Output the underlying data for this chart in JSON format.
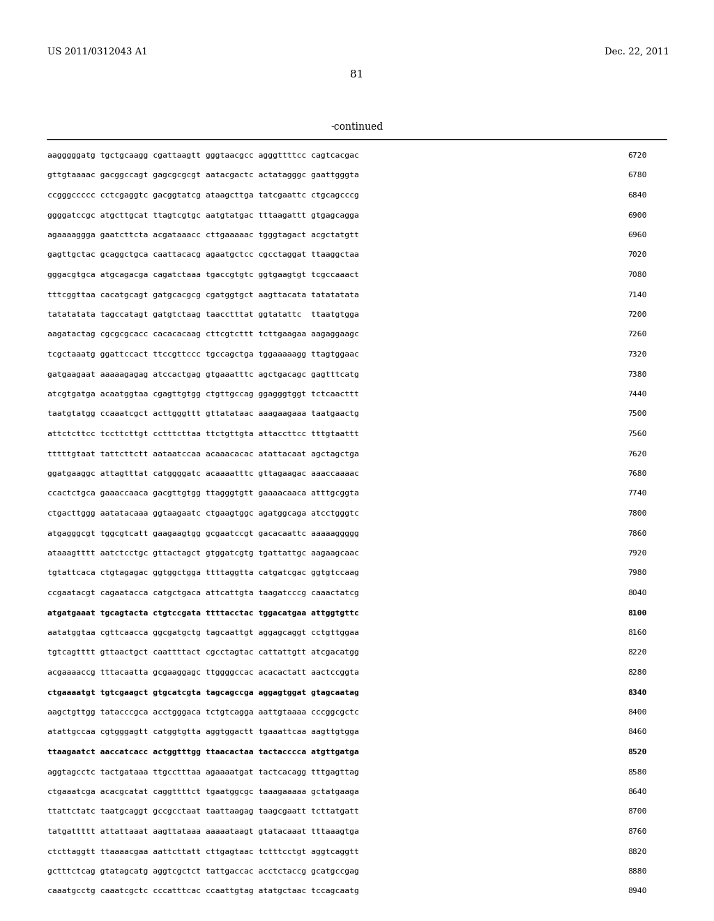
{
  "header_left": "US 2011/0312043 A1",
  "header_right": "Dec. 22, 2011",
  "page_number": "81",
  "continued_label": "-continued",
  "background_color": "#ffffff",
  "sequence_lines": [
    [
      "aagggggatg tgctgcaagg cgattaagtt gggtaacgcc agggttttcc cagtcacgac",
      "6720"
    ],
    [
      "gttgtaaaac gacggccagt gagcgcgcgt aatacgactc actatagggc gaattgggta",
      "6780"
    ],
    [
      "ccgggccccc cctcgaggtc gacggtatcg ataagcttga tatcgaattc ctgcagcccg",
      "6840"
    ],
    [
      "ggggatccgc atgcttgcat ttagtcgtgc aatgtatgac tttaagattt gtgagcagga",
      "6900"
    ],
    [
      "agaaaaggga gaatcttcta acgataaacc cttgaaaaac tgggtagact acgctatgtt",
      "6960"
    ],
    [
      "gagttgctac gcaggctgca caattacacg agaatgctcc cgcctaggat ttaaggctaa",
      "7020"
    ],
    [
      "gggacgtgca atgcagacga cagatctaaa tgaccgtgtc ggtgaagtgt tcgccaaact",
      "7080"
    ],
    [
      "tttcggttaa cacatgcagt gatgcacgcg cgatggtgct aagttacata tatatatata",
      "7140"
    ],
    [
      "tatatatata tagccatagt gatgtctaag taacctttat ggtatattc  ttaatgtgga",
      "7200"
    ],
    [
      "aagatactag cgcgcgcacc cacacacaag cttcgtcttt tcttgaagaa aagaggaagc",
      "7260"
    ],
    [
      "tcgctaaatg ggattccact ttccgttccc tgccagctga tggaaaaagg ttagtggaac",
      "7320"
    ],
    [
      "gatgaagaat aaaaagagag atccactgag gtgaaatttc agctgacagc gagtttcatg",
      "7380"
    ],
    [
      "atcgtgatga acaatggtaa cgagttgtgg ctgttgccag ggagggtggt tctcaacttt",
      "7440"
    ],
    [
      "taatgtatgg ccaaatcgct acttgggttt gttatataac aaagaagaaa taatgaactg",
      "7500"
    ],
    [
      "attctcttcc tccttcttgt cctttcttaa ttctgttgta attaccttcc tttgtaattt",
      "7560"
    ],
    [
      "tttttgtaat tattcttctt aataatccaa acaaacacac atattacaat agctagctga",
      "7620"
    ],
    [
      "ggatgaaggc attagtttat catggggatc acaaaatttc gttagaagac aaaccaaaac",
      "7680"
    ],
    [
      "ccactctgca gaaaccaaca gacgttgtgg ttagggtgtt gaaaacaaca atttgcggta",
      "7740"
    ],
    [
      "ctgacttggg aatatacaaa ggtaagaatc ctgaagtggc agatggcaga atcctgggtc",
      "7800"
    ],
    [
      "atgagggcgt tggcgtcatt gaagaagtgg gcgaatccgt gacacaattc aaaaaggggg",
      "7860"
    ],
    [
      "ataaagtttt aatctcctgc gttactagct gtggatcgtg tgattattgc aagaagcaac",
      "7920"
    ],
    [
      "tgtattcaca ctgtagagac ggtggctgga ttttaggtta catgatcgac ggtgtccaag",
      "7980"
    ],
    [
      "ccgaatacgt cagaatacca catgctgaca attcattgta taagatcccg caaactatcg",
      "8040"
    ],
    [
      "atgatgaaat tgcagtacta ctgtccgata ttttacctac tggacatgaa attggtgttc",
      "8100"
    ],
    [
      "aatatggtaa cgttcaacca ggcgatgctg tagcaattgt aggagcaggt cctgttggaa",
      "8160"
    ],
    [
      "tgtcagtttt gttaactgct caattttact cgcctagtac cattattgtt atcgacatgg",
      "8220"
    ],
    [
      "acgaaaaccg tttacaatta gcgaaggagc ttggggccac acacactatt aactccggta",
      "8280"
    ],
    [
      "ctgaaaatgt tgtcgaagct gtgcatcgta tagcagccga aggagtggat gtagcaatag",
      "8340"
    ],
    [
      "aagctgttgg tatacccgca acctgggaca tctgtcagga aattgtaaaa cccggcgctc",
      "8400"
    ],
    [
      "atattgccaa cgtgggagtt catggtgtta aggtggactt tgaaattcaa aagttgtgga",
      "8460"
    ],
    [
      "ttaagaatct aaccatcacc actggtttgg ttaacactaa tactacccca atgttgatga",
      "8520"
    ],
    [
      "aggtagcctc tactgataaa ttgcctttaa agaaaatgat tactcacagg tttgagttag",
      "8580"
    ],
    [
      "ctgaaatcga acacgcatat caggttttct tgaatggcgc taaagaaaaa gctatgaaga",
      "8640"
    ],
    [
      "ttattctatc taatgcaggt gccgcctaat taattaagag taagcgaatt tcttatgatt",
      "8700"
    ],
    [
      "tatgattttt attattaaat aagttataaa aaaaataagt gtatacaaat tttaaagtga",
      "8760"
    ],
    [
      "ctcttaggtt ttaaaacgaa aattcttatt cttgagtaac tctttcctgt aggtcaggtt",
      "8820"
    ],
    [
      "gctttctcag gtatagcatg aggtcgctct tattgaccac acctctaccg gcatgccgag",
      "8880"
    ],
    [
      "caaatgcctg caaatcgctc cccatttcac ccaattgtag atatgctaac tccagcaatg",
      "8940"
    ]
  ],
  "bold_indices": [
    23,
    27,
    30
  ]
}
